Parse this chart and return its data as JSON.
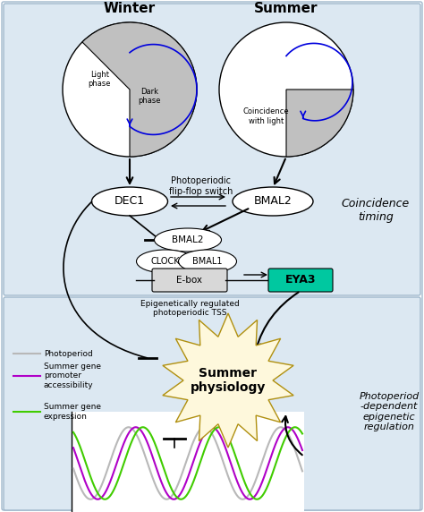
{
  "title_winter": "Winter",
  "title_summer": "Summer",
  "label_light_phase": "Light\nphase",
  "label_dark_phase": "Dark\nphase",
  "label_coincidence": "Coincidence\nwith light",
  "label_dec1": "DEC1",
  "label_bmal2_top": "BMAL2",
  "label_flipflop": "Photoperiodic\nflip-flop switch",
  "label_bmal2": "BMAL2",
  "label_clock": "CLOCK",
  "label_bmal1": "BMAL1",
  "label_ebox": "E-box",
  "label_eya3": "EYA3",
  "label_tss": "Epigenetically regulated\nphotoperiodic TSS",
  "label_summer_physiology": "Summer\nphysiology",
  "label_coincidence_timing": "Coincidence\ntiming",
  "label_photoperiod_legend": "Photoperiod",
  "label_summer_gene_promoter": "Summer gene\npromoter\naccessibility",
  "label_summer_gene_expression": "Summer gene\nexpression",
  "label_right_section": "Photoperiod\n-dependent\nepigenetic\nregulation",
  "bg_panel": "#dce8f2",
  "bg_white": "#ffffff",
  "pie_white": "#ffffff",
  "pie_gray": "#c0c0c0",
  "pie_blue_line": "#0000dd",
  "eya3_fill": "#00c8a0",
  "star_fill": "#fef8dc",
  "star_edge": "#c8a820",
  "line_gray": "#b8b8b8",
  "line_purple": "#b000c8",
  "line_green": "#40cc00"
}
